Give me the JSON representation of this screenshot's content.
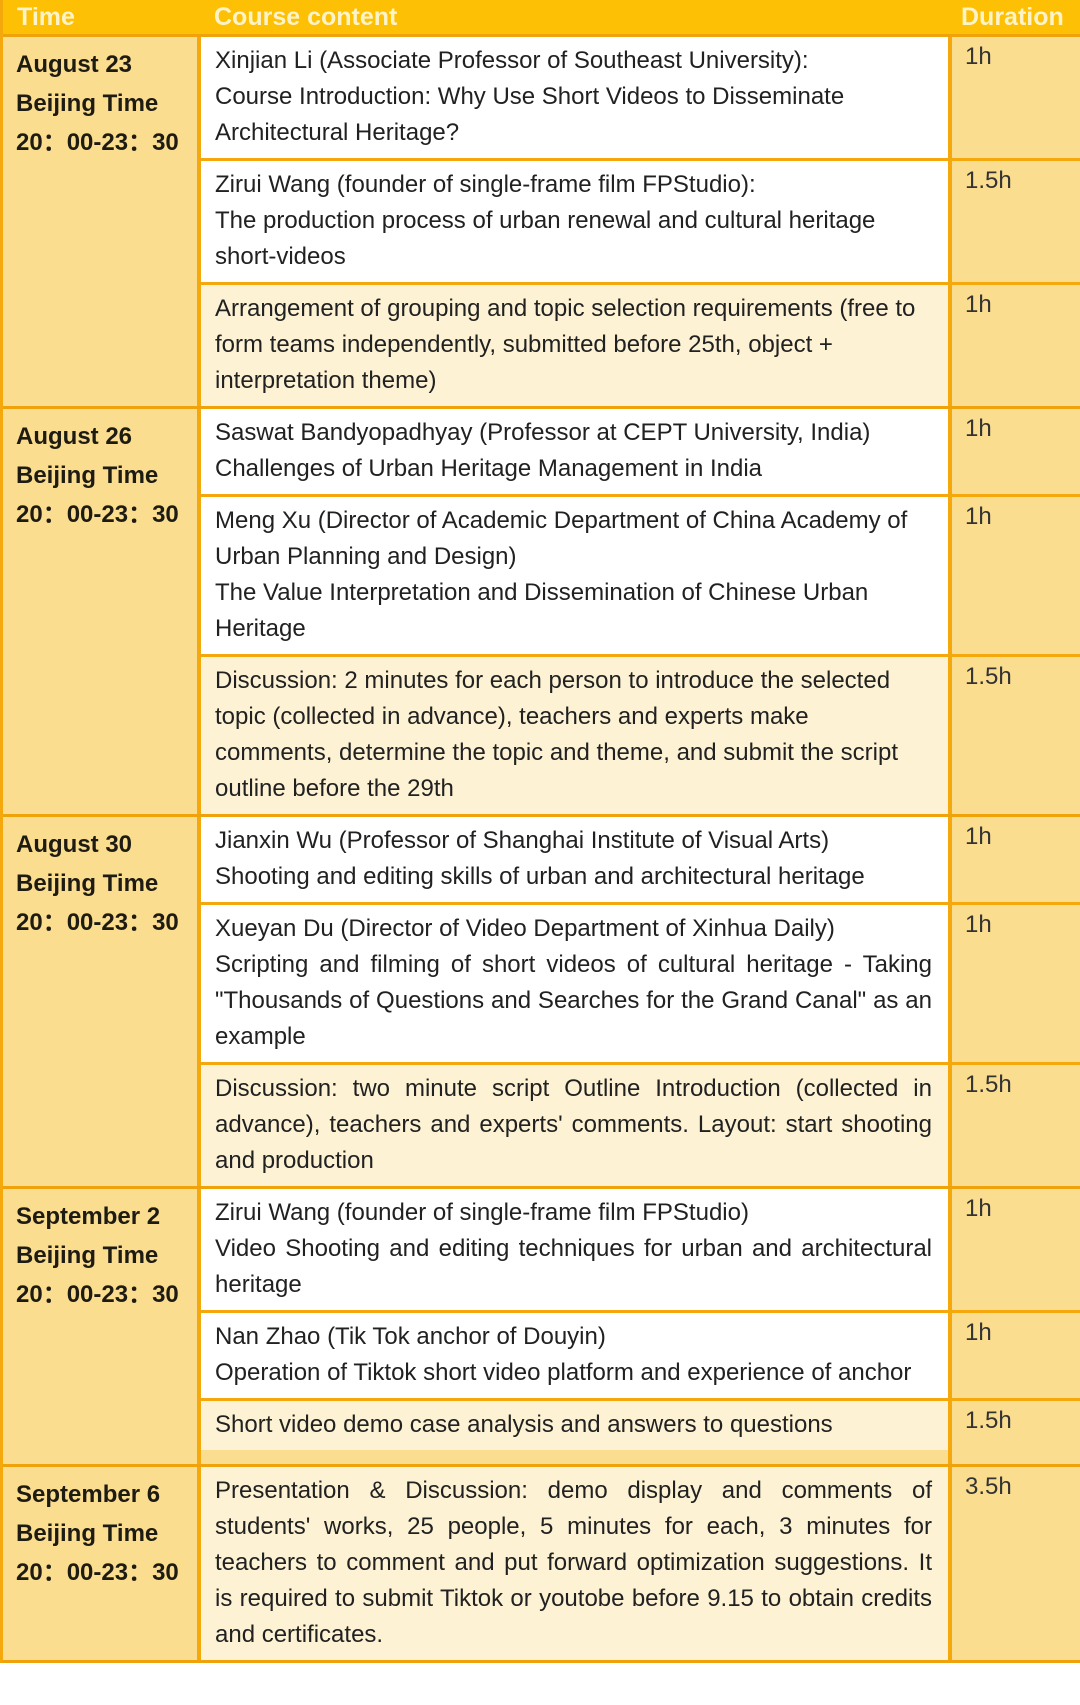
{
  "colors": {
    "header_bg": "#FDC004",
    "header_text": "#FDF3C8",
    "gold_cell": "#FBDD90",
    "cream_cell": "#FDF3D4",
    "white_cell": "#FFFFFF",
    "grid_line": "#F5A80B",
    "group_line": "#EFA20A",
    "body_text": "#212121",
    "time_text": "#1E1B13",
    "duration_text": "#333333"
  },
  "table": {
    "columns": [
      {
        "key": "time",
        "label": "Time"
      },
      {
        "key": "content",
        "label": "Course content"
      },
      {
        "key": "duration",
        "label": "Duration"
      }
    ],
    "groups": [
      {
        "time": [
          "August 23",
          "Beijing Time",
          "20：00-23：30"
        ],
        "rows": [
          {
            "paragraphs": [
              "Xinjian Li (Associate Professor of Southeast University):",
              "Course Introduction: Why Use Short Videos to Disseminate Architectural Heritage?"
            ],
            "duration": "1h",
            "highlight": false,
            "justified": false,
            "gap_below": false
          },
          {
            "paragraphs": [
              "Zirui Wang (founder of single-frame film FPStudio):",
              "The production process of urban renewal and cultural heritage short-videos"
            ],
            "duration": "1.5h",
            "highlight": false,
            "justified": false,
            "gap_below": false
          },
          {
            "paragraphs": [
              "Arrangement of grouping and topic selection requirements (free to form teams independently, submitted before 25th, object + interpretation theme)"
            ],
            "duration": "1h",
            "highlight": true,
            "justified": false,
            "gap_below": false
          }
        ]
      },
      {
        "time": [
          "August 26",
          "Beijing Time",
          "20：00-23：30"
        ],
        "rows": [
          {
            "paragraphs": [
              "Saswat Bandyopadhyay  (Professor at CEPT University, India)",
              "Challenges of Urban Heritage Management in India"
            ],
            "duration": "1h",
            "highlight": false,
            "justified": false,
            "gap_below": false
          },
          {
            "paragraphs": [
              "Meng Xu (Director of Academic Department of China Academy of Urban Planning and Design)",
              "The Value Interpretation and Dissemination of Chinese Urban Heritage"
            ],
            "duration": "1h",
            "highlight": false,
            "justified": false,
            "gap_below": false
          },
          {
            "paragraphs": [
              "Discussion: 2 minutes for each person to introduce the selected topic (collected in advance), teachers and experts make comments, determine the topic and theme, and submit the script outline before the 29th"
            ],
            "duration": "1.5h",
            "highlight": true,
            "justified": false,
            "gap_below": false
          }
        ]
      },
      {
        "time": [
          "August 30",
          "Beijing Time",
          "20：00-23：30"
        ],
        "rows": [
          {
            "paragraphs": [
              "Jianxin Wu (Professor of Shanghai Institute of Visual Arts)",
              "Shooting and editing skills of urban and architectural heritage"
            ],
            "duration": "1h",
            "highlight": false,
            "justified": false,
            "gap_below": false
          },
          {
            "paragraphs": [
              "Xueyan Du (Director of Video Department of Xinhua Daily)",
              "Scripting and filming of short videos of cultural heritage - Taking \"Thousands of Questions and Searches for the Grand Canal\" as an example"
            ],
            "duration": "1h",
            "highlight": false,
            "justified": true,
            "gap_below": false
          },
          {
            "paragraphs": [
              "Discussion: two minute script Outline Introduction (collected in advance), teachers and experts' comments. Layout: start shooting and production"
            ],
            "duration": "1.5h",
            "highlight": true,
            "justified": true,
            "gap_below": false
          }
        ]
      },
      {
        "time": [
          "September 2",
          "Beijing Time",
          "20：00-23：30"
        ],
        "rows": [
          {
            "paragraphs": [
              "Zirui Wang (founder of single-frame film FPStudio)",
              "Video Shooting and editing techniques for urban and architectural heritage"
            ],
            "duration": "1h",
            "highlight": false,
            "justified": true,
            "gap_below": false
          },
          {
            "paragraphs": [
              "Nan Zhao (Tik Tok anchor of Douyin)",
              "Operation of Tiktok short video platform and experience of anchor"
            ],
            "duration": "1h",
            "highlight": false,
            "justified": true,
            "gap_below": false
          },
          {
            "paragraphs": [
              "Short video demo case analysis and answers to questions"
            ],
            "duration": "1.5h",
            "highlight": true,
            "justified": false,
            "gap_below": true
          }
        ]
      },
      {
        "time": [
          "September 6",
          "Beijing Time",
          "20：00-23：30"
        ],
        "rows": [
          {
            "paragraphs": [
              "Presentation & Discussion: demo display and comments of students' works, 25 people, 5 minutes for each, 3 minutes for teachers to comment and put forward optimization suggestions. It is required to submit Tiktok or youtobe before 9.15 to obtain credits and certificates."
            ],
            "duration": "3.5h",
            "highlight": true,
            "justified": true,
            "gap_below": false
          }
        ]
      }
    ]
  }
}
